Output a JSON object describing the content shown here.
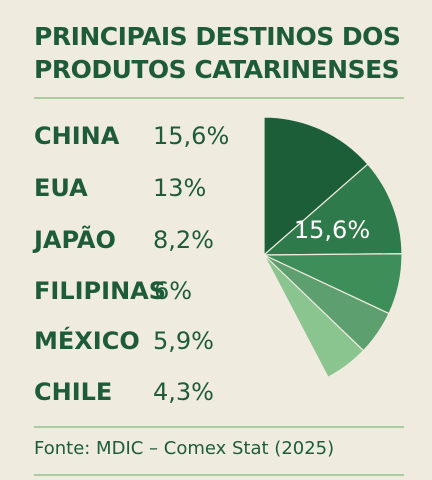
{
  "chart_data": {
    "type": "pie",
    "title": "PRINCIPAIS DESTINOS DOS PRODUTOS CATARINENSES",
    "categories": [
      "CHINA",
      "EUA",
      "JAPÃO",
      "FILIPINAS",
      "MÉXICO",
      "CHILE"
    ],
    "values": [
      15.6,
      13,
      8.2,
      6,
      5.9,
      4.3
    ],
    "value_labels": [
      "15,6%",
      "13%",
      "8,2%",
      "6%",
      "5,9%",
      "4,3%"
    ],
    "slice_labels": [
      "15,6%"
    ],
    "source": "Fonte: MDIC – Comex Stat (2025)",
    "colors": {
      "background": "#efecdf",
      "text": "#1e5b3a",
      "rule": "#a9ce9f",
      "slices": [
        "#1c5e37",
        "#2f7a4a",
        "#3e8e5a",
        "#5e9f70",
        "#8ac48f"
      ]
    }
  }
}
